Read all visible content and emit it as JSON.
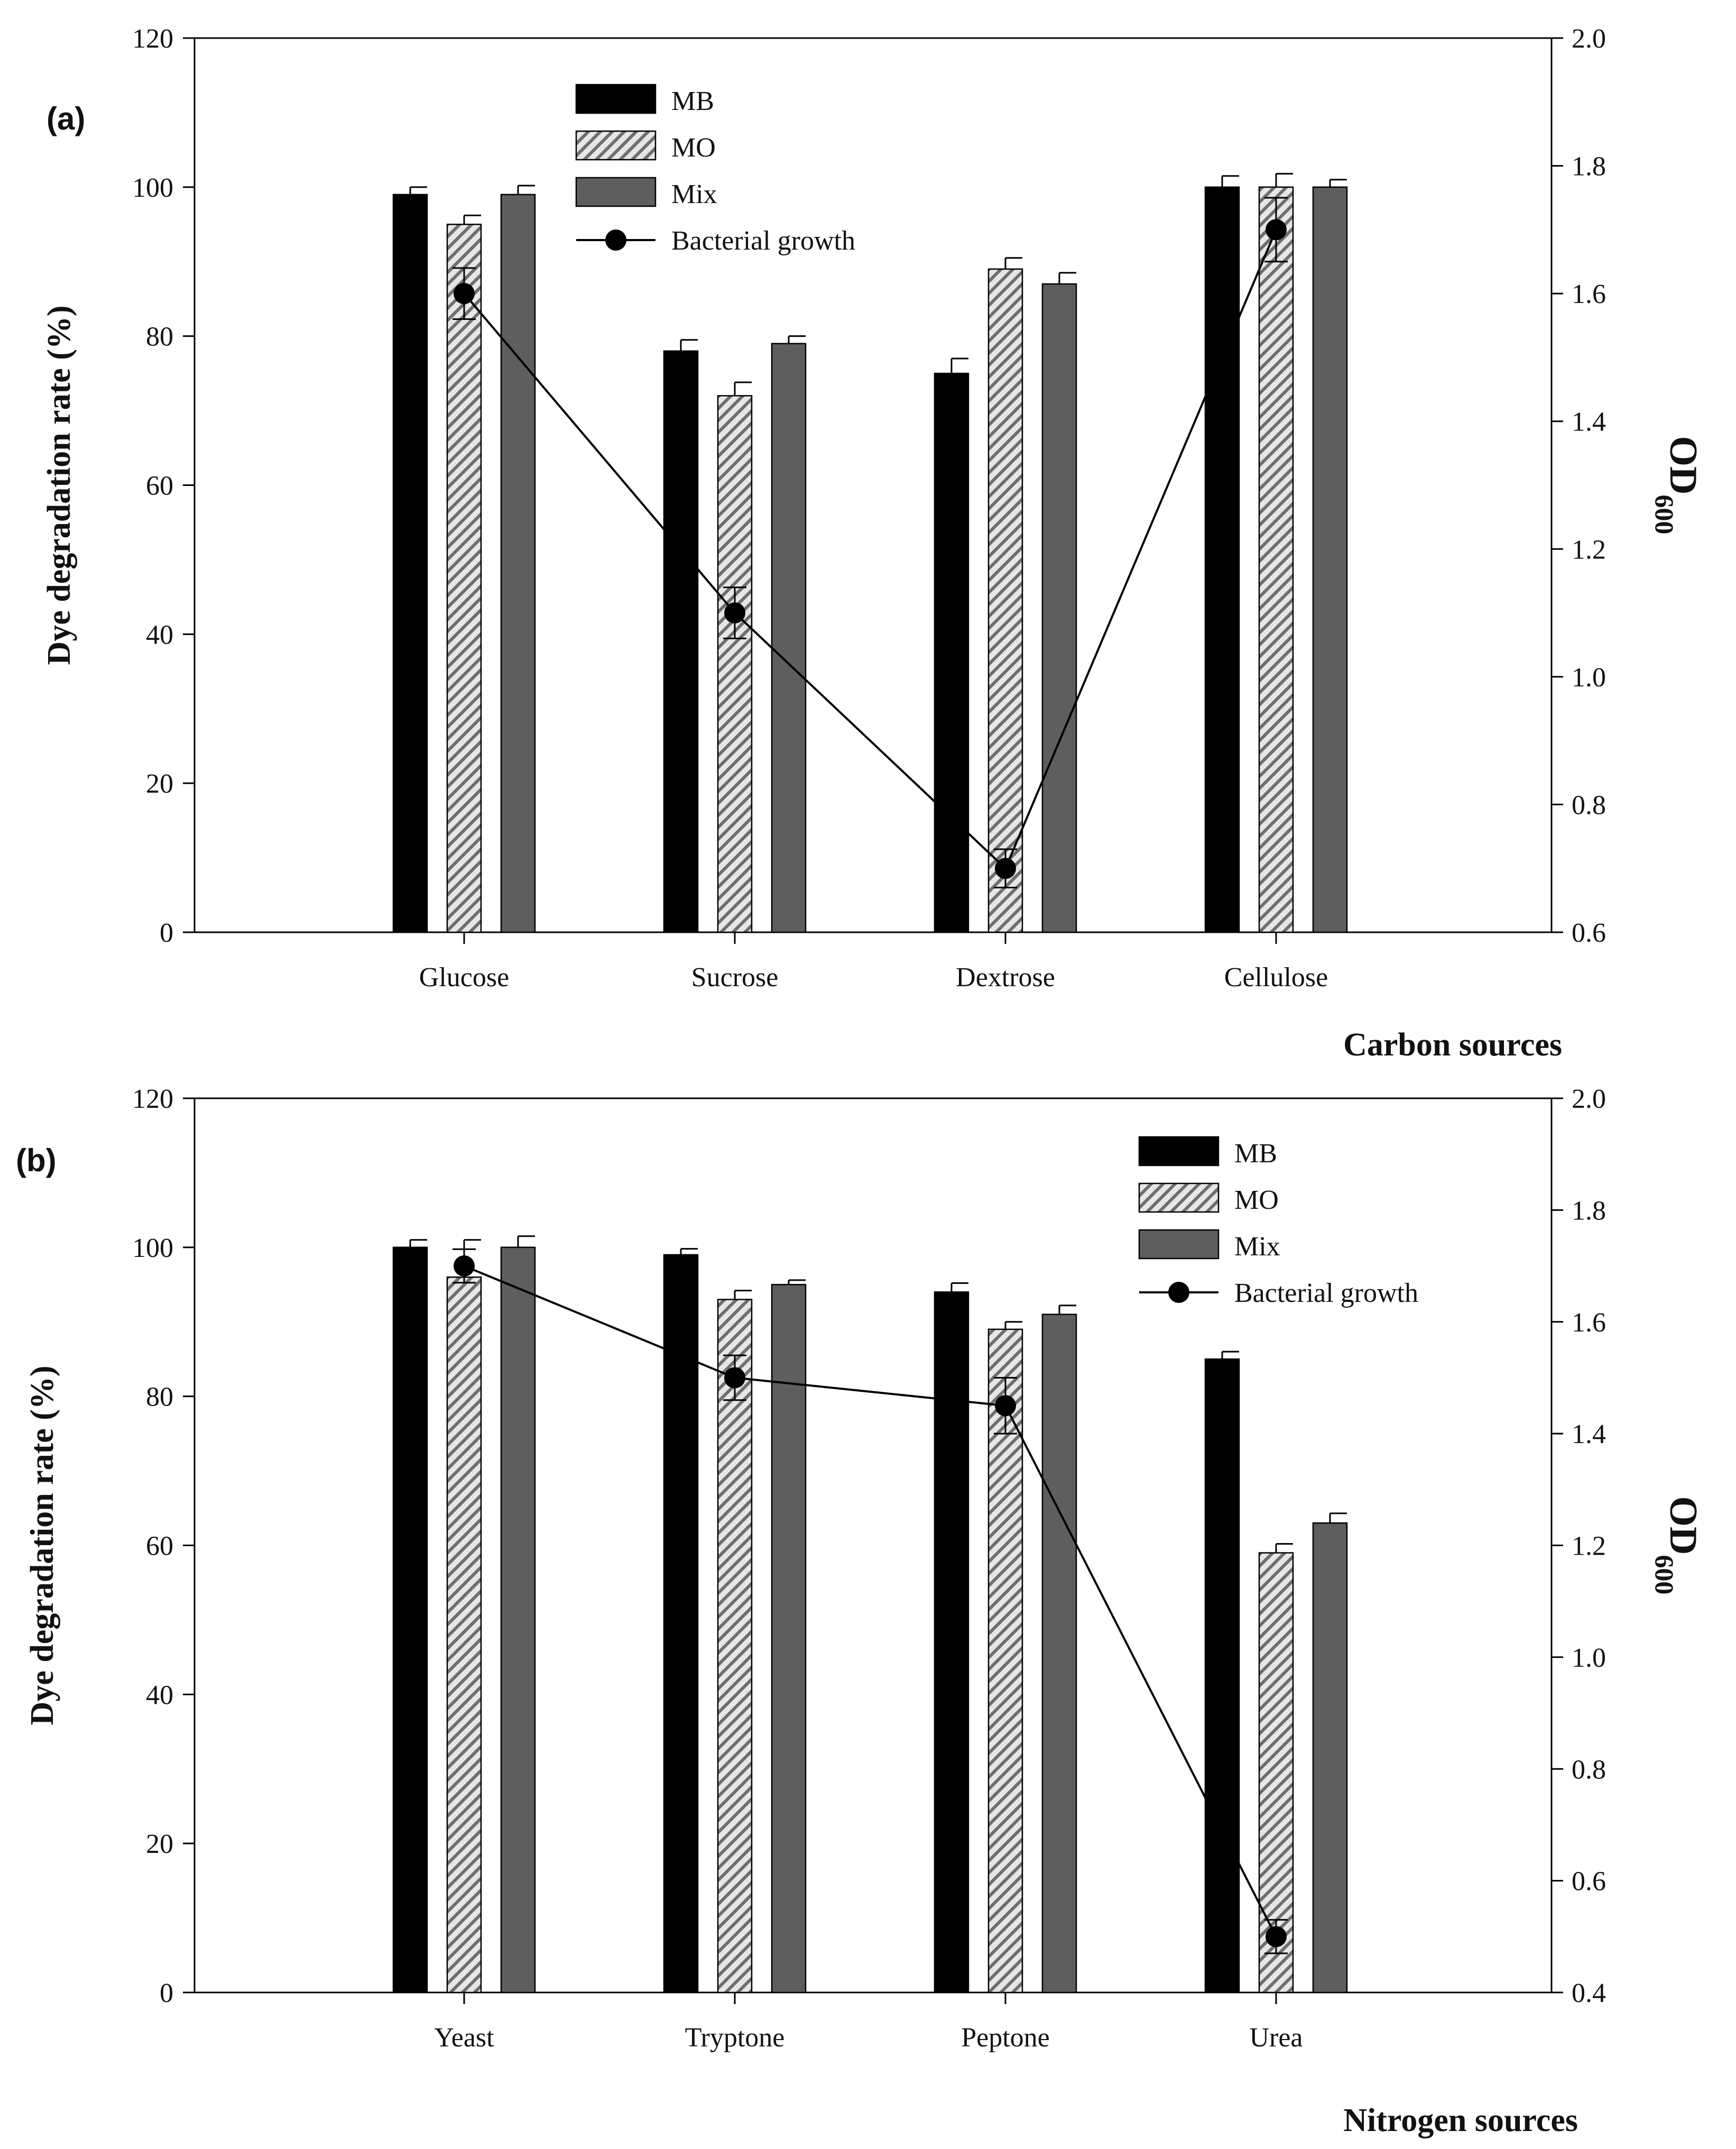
{
  "colors": {
    "MB": "#000000",
    "MO_stripe": "#6e6e6e",
    "MO_bg": "#e6e6e6",
    "Mix": "#5e5e5e",
    "line": "#000000"
  },
  "chart_data": [
    {
      "type": "bar",
      "panel_label": "(a)",
      "categories": [
        "Glucose",
        "Sucrose",
        "Dextrose",
        "Cellulose"
      ],
      "xlabel": "Carbon sources",
      "ylabel": "Dye degradation rate (%)",
      "y2label_base": "OD",
      "y2label_sub": "600",
      "ylim": [
        0,
        120
      ],
      "y_ticks": [
        0,
        20,
        40,
        60,
        80,
        100,
        120
      ],
      "y2lim": [
        0.6,
        2.0
      ],
      "y2_ticks": [
        "0.6",
        "0.8",
        "1.0",
        "1.2",
        "1.4",
        "1.6",
        "1.8",
        "2.0"
      ],
      "legend_position": "top-center",
      "series": [
        {
          "name": "MB",
          "kind": "bar",
          "values": [
            99,
            78,
            75,
            100
          ],
          "errors": [
            1.0,
            1.5,
            2.0,
            1.5
          ]
        },
        {
          "name": "MO",
          "kind": "bar",
          "values": [
            95,
            72,
            89,
            100
          ],
          "errors": [
            1.2,
            1.8,
            1.5,
            1.8
          ]
        },
        {
          "name": "Mix",
          "kind": "bar",
          "values": [
            99,
            79,
            87,
            100
          ],
          "errors": [
            1.2,
            1.0,
            1.5,
            1.0
          ]
        },
        {
          "name": "Bacterial growth",
          "kind": "line",
          "axis": "right",
          "values": [
            1.6,
            1.1,
            0.7,
            1.7
          ],
          "errors": [
            0.04,
            0.04,
            0.03,
            0.05
          ]
        }
      ]
    },
    {
      "type": "bar",
      "panel_label": "(b)",
      "categories": [
        "Yeast",
        "Tryptone",
        "Peptone",
        "Urea"
      ],
      "xlabel": "Nitrogen sources",
      "ylabel": "Dye degradation rate (%)",
      "y2label_base": "OD",
      "y2label_sub": "600",
      "ylim": [
        0,
        120
      ],
      "y_ticks": [
        0,
        20,
        40,
        60,
        80,
        100,
        120
      ],
      "y2lim": [
        0.4,
        2.0
      ],
      "y2_ticks": [
        "0.4",
        "0.6",
        "0.8",
        "1.0",
        "1.2",
        "1.4",
        "1.6",
        "1.8",
        "2.0"
      ],
      "legend_position": "top-right",
      "series": [
        {
          "name": "MB",
          "kind": "bar",
          "values": [
            100,
            99,
            94,
            85
          ],
          "errors": [
            1.0,
            0.8,
            1.2,
            1.0
          ]
        },
        {
          "name": "MO",
          "kind": "bar",
          "values": [
            96,
            93,
            89,
            59
          ],
          "errors": [
            5.0,
            1.2,
            1.0,
            1.2
          ]
        },
        {
          "name": "Mix",
          "kind": "bar",
          "values": [
            100,
            95,
            91,
            63
          ],
          "errors": [
            1.5,
            0.6,
            1.2,
            1.3
          ]
        },
        {
          "name": "Bacterial growth",
          "kind": "line",
          "axis": "right",
          "values": [
            1.7,
            1.5,
            1.45,
            0.5
          ],
          "errors": [
            0.03,
            0.04,
            0.05,
            0.03
          ]
        }
      ]
    }
  ]
}
